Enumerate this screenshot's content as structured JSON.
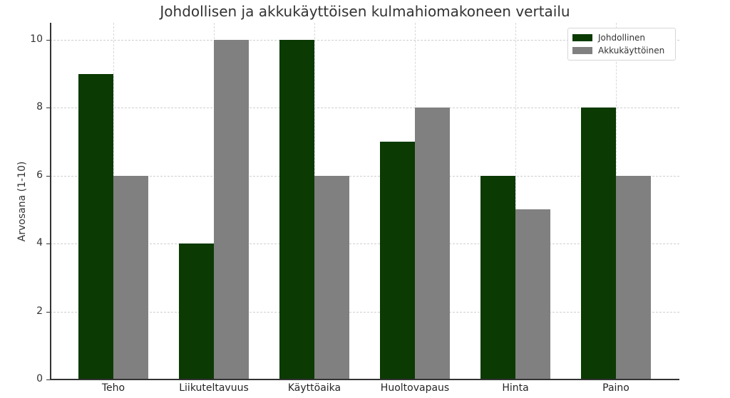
{
  "chart_data": {
    "type": "bar",
    "title": "Johdollisen ja akkukäyttöisen kulmahiomakoneen vertailu",
    "xlabel": "",
    "ylabel": "Arvosana (1-10)",
    "ylim": [
      0,
      10.5
    ],
    "yticks": [
      0,
      2,
      4,
      6,
      8,
      10
    ],
    "grid": true,
    "legend_position": "upper right",
    "categories": [
      "Teho",
      "Liikuteltavuus",
      "Käyttöaika",
      "Huoltovapaus",
      "Hinta",
      "Paino"
    ],
    "series": [
      {
        "name": "Johdollinen",
        "color": "#0b3a02",
        "values": [
          9,
          4,
          10,
          7,
          6,
          8
        ]
      },
      {
        "name": "Akkukäyttöinen",
        "color": "#808080",
        "values": [
          6,
          10,
          6,
          8,
          5,
          6
        ]
      }
    ]
  },
  "legend": {
    "items": [
      "Johdollinen",
      "Akkukäyttöinen"
    ]
  }
}
